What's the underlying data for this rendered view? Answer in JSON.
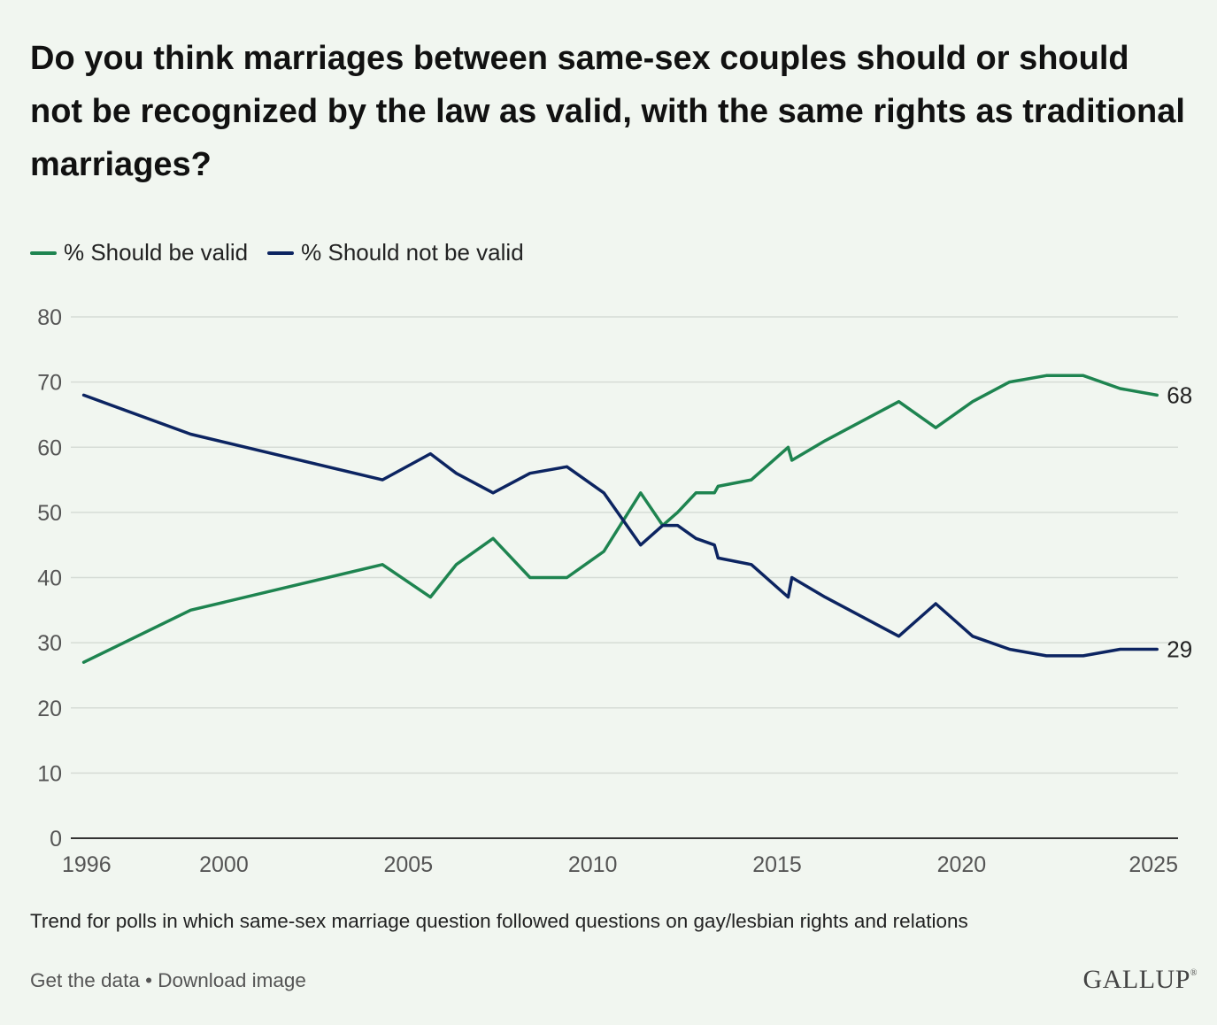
{
  "title": "Do you think marriages between same-sex couples should or should not be recognized by the law as valid, with the same rights as traditional marriages?",
  "note": "Trend for polls in which same-sex marriage question followed questions on gay/lesbian rights and relations",
  "footer": {
    "get_data": "Get the data",
    "separator": "•",
    "download": "Download image",
    "logo": "GALLUP",
    "logo_mark": "®"
  },
  "colors": {
    "valid": "#1e8450",
    "not_valid": "#0c2461",
    "grid": "#d6dcd6",
    "axis": "#333333",
    "tick_text": "#555555"
  },
  "chart_data": {
    "type": "line",
    "ylim": [
      0,
      80
    ],
    "yticks": [
      0,
      10,
      20,
      30,
      40,
      50,
      60,
      70,
      80
    ],
    "xlim": [
      1995.85,
      2025.87
    ],
    "xticks": [
      1996,
      2000,
      2005,
      2010,
      2015,
      2020,
      2025
    ],
    "grid": true,
    "legend_position": "top-left",
    "series": [
      {
        "name": "% Should be valid",
        "color": "#1e8450",
        "end_label": "68",
        "points": [
          [
            1996.2,
            27
          ],
          [
            1999.1,
            35
          ],
          [
            2004.3,
            42
          ],
          [
            2005.6,
            37
          ],
          [
            2006.3,
            42
          ],
          [
            2007.3,
            46
          ],
          [
            2008.3,
            40
          ],
          [
            2009.3,
            40
          ],
          [
            2010.3,
            44
          ],
          [
            2011.3,
            53
          ],
          [
            2011.9,
            48
          ],
          [
            2012.3,
            50
          ],
          [
            2012.8,
            53
          ],
          [
            2013.3,
            53
          ],
          [
            2013.4,
            54
          ],
          [
            2014.3,
            55
          ],
          [
            2015.3,
            60
          ],
          [
            2015.4,
            58
          ],
          [
            2016.3,
            61
          ],
          [
            2018.3,
            67
          ],
          [
            2019.3,
            63
          ],
          [
            2020.3,
            67
          ],
          [
            2021.3,
            70
          ],
          [
            2022.3,
            71
          ],
          [
            2023.3,
            71
          ],
          [
            2024.3,
            69
          ],
          [
            2025.3,
            68
          ]
        ]
      },
      {
        "name": "% Should not be valid",
        "color": "#0c2461",
        "end_label": "29",
        "points": [
          [
            1996.2,
            68
          ],
          [
            1999.1,
            62
          ],
          [
            2004.3,
            55
          ],
          [
            2005.6,
            59
          ],
          [
            2006.3,
            56
          ],
          [
            2007.3,
            53
          ],
          [
            2008.3,
            56
          ],
          [
            2009.3,
            57
          ],
          [
            2010.3,
            53
          ],
          [
            2011.3,
            45
          ],
          [
            2011.9,
            48
          ],
          [
            2012.3,
            48
          ],
          [
            2012.8,
            46
          ],
          [
            2013.3,
            45
          ],
          [
            2013.4,
            43
          ],
          [
            2014.3,
            42
          ],
          [
            2015.3,
            37
          ],
          [
            2015.4,
            40
          ],
          [
            2016.3,
            37
          ],
          [
            2018.3,
            31
          ],
          [
            2019.3,
            36
          ],
          [
            2020.3,
            31
          ],
          [
            2021.3,
            29
          ],
          [
            2022.3,
            28
          ],
          [
            2023.3,
            28
          ],
          [
            2024.3,
            29
          ],
          [
            2025.3,
            29
          ]
        ]
      }
    ]
  }
}
